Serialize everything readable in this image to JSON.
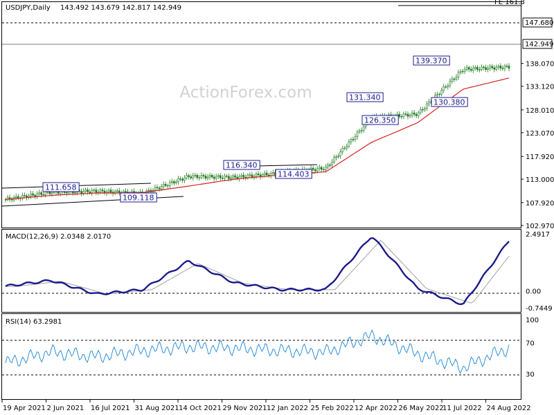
{
  "header": {
    "instrument": "USDJPY,Daily",
    "ohlc": "143.492 143.679 142.817 142.949"
  },
  "watermark": "ActionForex.com",
  "colors": {
    "candle": "#1f7a1f",
    "ma": "#d62020",
    "macd": "#1a1a8c",
    "signal": "#a0a0a0",
    "rsi": "#2f8fd8",
    "label": "#1a1a8c"
  },
  "price_axis": {
    "ticks": [
      "102.970",
      "107.920",
      "113.000",
      "117.920",
      "123.070",
      "128.010",
      "133.120",
      "138.070"
    ],
    "current_label": "142.949",
    "level_label": "147.680",
    "top_partial": "FE 161.8"
  },
  "macd_panel": {
    "title": "MACD(12,26,9) 2.0348 2.0170",
    "ticks": [
      "2.4917",
      "0.00",
      "-0.7449"
    ]
  },
  "rsi_panel": {
    "title": "RSI(14) 63.2981",
    "ticks": [
      "100",
      "70",
      "30"
    ]
  },
  "date_axis": [
    "19 Apr 2021",
    "2 Jun 2021",
    "16 Jul 2021",
    "31 Aug 2021",
    "14 Oct 2021",
    "29 Nov 2021",
    "12 Jan 2022",
    "25 Feb 2022",
    "12 Apr 2022",
    "26 May 2022",
    "11 Jul 2022",
    "24 Aug 2022"
  ],
  "annotations": [
    "111.658",
    "109.118",
    "116.340",
    "114.403",
    "131.340",
    "126.350",
    "139.370",
    "130.380"
  ],
  "chart_data": [
    {
      "type": "line",
      "panel": "price",
      "title": "USDJPY,Daily",
      "yticks": [
        102.97,
        107.92,
        113.0,
        117.92,
        123.07,
        128.01,
        133.12,
        138.07
      ],
      "x": [
        "19 Apr 2021",
        "2 Jun 2021",
        "16 Jul 2021",
        "31 Aug 2021",
        "14 Oct 2021",
        "29 Nov 2021",
        "12 Jan 2022",
        "25 Feb 2022",
        "12 Apr 2022",
        "26 May 2022",
        "11 Jul 2022",
        "24 Aug 2022"
      ],
      "series": [
        {
          "values": [
            108.6,
            110.2,
            110.4,
            109.9,
            113.6,
            113.4,
            114.3,
            115.4,
            126.3,
            127.1,
            136.8,
            137.3
          ]
        }
      ],
      "ma_values": [
        108.6,
        109.5,
        110.0,
        110.1,
        111.5,
        113.0,
        113.9,
        114.6,
        121.0,
        125.2,
        132.5,
        134.9
      ]
    },
    {
      "type": "line",
      "panel": "macd",
      "title": "MACD(12,26,9) 2.0348 2.0170",
      "yticks": [
        2.4917,
        0.0,
        -0.7449
      ],
      "series": [
        {
          "values": [
            0.2,
            0.45,
            -0.15,
            0.05,
            1.3,
            0.35,
            0.05,
            0.05,
            2.4,
            0.1,
            -0.6,
            2.2
          ]
        }
      ]
    },
    {
      "type": "line",
      "panel": "rsi",
      "title": "RSI(14) 63.2981",
      "yticks": [
        100,
        70,
        30
      ],
      "series": [
        {
          "values": [
            44,
            58,
            52,
            60,
            65,
            63,
            60,
            58,
            79,
            56,
            38,
            63.3
          ]
        }
      ]
    }
  ]
}
